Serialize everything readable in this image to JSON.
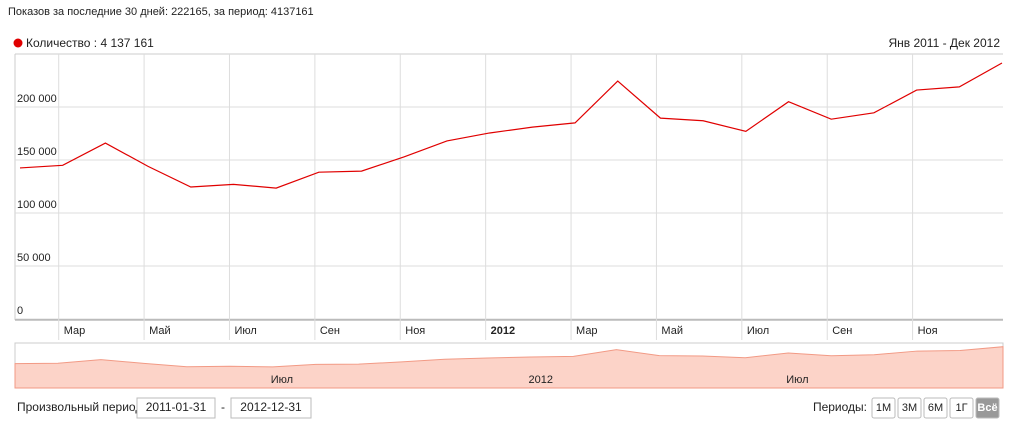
{
  "header": "Показов за последние 30 дней: 222165, за период: 4137161",
  "chart_data": {
    "type": "line",
    "subtitle": "Янв 2011 - Дек 2012",
    "categories": [
      null,
      null,
      "Мар",
      null,
      "Май",
      null,
      "Июл",
      null,
      "Сен",
      null,
      "Ноя",
      null,
      "2012",
      null,
      "Мар",
      null,
      "Май",
      null,
      "Июл",
      null,
      "Сен",
      null,
      "Ноя",
      null
    ],
    "series": [
      {
        "name": "Количество : 4 137 161",
        "color": "#e00000",
        "values": [
          142500,
          145000,
          166000,
          144000,
          124500,
          127000,
          123500,
          138500,
          139500,
          153000,
          168000,
          175500,
          181000,
          185000,
          224500,
          189500,
          187000,
          177000,
          205000,
          188500,
          194500,
          216000,
          219000,
          241500
        ]
      }
    ],
    "ylim": [
      0,
      250000
    ],
    "yticks": [
      0,
      {
        "value": 50000,
        "label": "50 000"
      },
      {
        "value": 100000,
        "label": "100 000"
      },
      {
        "value": 150000,
        "label": "150 000"
      },
      {
        "value": 200000,
        "label": "200 000"
      }
    ],
    "grid": true
  },
  "controls": {
    "range_label": "Произвольный период:",
    "from": "2011-01-31",
    "separator": "-",
    "to": "2012-12-31",
    "periods_label": "Периоды:",
    "periods": [
      "1М",
      "3М",
      "6М",
      "1Г",
      "Всё"
    ],
    "active_period": 4
  }
}
